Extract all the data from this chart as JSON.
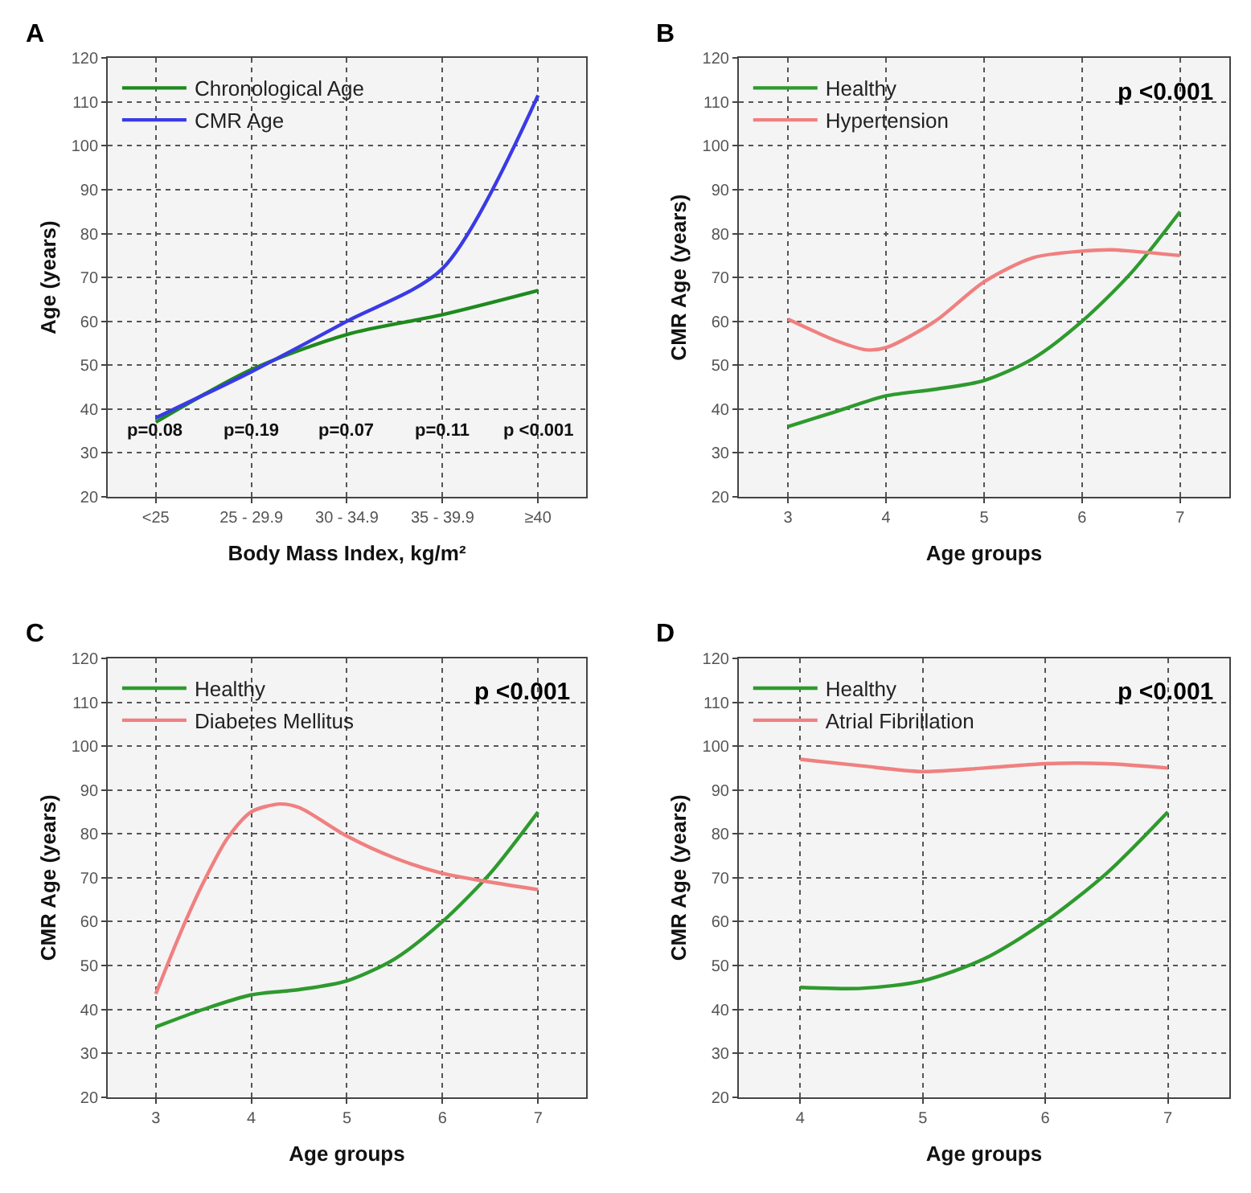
{
  "chart_data": [
    {
      "type": "line",
      "title": "A",
      "xlabel": "Body Mass Index, kg/m²",
      "ylabel": "Age (years)",
      "categories": [
        "<25",
        "25 - 29.9",
        "30 - 34.9",
        "35 - 39.9",
        "≥40"
      ],
      "series": [
        {
          "name": "Chronological Age",
          "color": "#1e8a1e",
          "values": [
            37,
            49,
            57,
            61.5,
            67
          ]
        },
        {
          "name": "CMR Age",
          "color": "#3a3ae6",
          "values": [
            38,
            48.5,
            60,
            72,
            111.5
          ]
        }
      ],
      "ylim": [
        20,
        120
      ],
      "yticks": [
        20,
        30,
        40,
        50,
        60,
        70,
        80,
        90,
        100,
        110,
        120
      ],
      "grid": true,
      "legend": "top left",
      "line_style": "solid",
      "annotations": [
        "p=0.08",
        "p=0.19",
        "p=0.07",
        "p=0.11",
        "p <0.001"
      ]
    },
    {
      "type": "line",
      "title": "B",
      "xlabel": "Age groups",
      "ylabel": "CMR Age (years)",
      "series": [
        {
          "name": "Healthy",
          "color": "#2e9a2e",
          "x": [
            3,
            3.5,
            4,
            4.5,
            5,
            5.5,
            6,
            6.5,
            7
          ],
          "values": [
            36,
            39.5,
            43,
            44.5,
            46.5,
            51.5,
            60,
            71,
            85
          ]
        },
        {
          "name": "Hypertension",
          "color": "#f08080",
          "x": [
            3,
            3.5,
            3.8,
            4,
            4.5,
            5,
            5.5,
            6,
            6.3,
            6.5,
            7
          ],
          "values": [
            60.5,
            55.5,
            53.5,
            54,
            60,
            69,
            74.5,
            76,
            76.3,
            76,
            75
          ]
        }
      ],
      "xlim": [
        2.5,
        7.5
      ],
      "xticks": [
        3,
        4,
        5,
        6,
        7
      ],
      "ylim": [
        20,
        120
      ],
      "yticks": [
        20,
        30,
        40,
        50,
        60,
        70,
        80,
        90,
        100,
        110,
        120
      ],
      "grid": true,
      "legend": "top left",
      "line_style": "solid",
      "annotations": [
        "p <0.001"
      ]
    },
    {
      "type": "line",
      "title": "C",
      "xlabel": "Age groups",
      "ylabel": "CMR Age (years)",
      "series": [
        {
          "name": "Healthy",
          "color": "#2e9a2e",
          "x": [
            3,
            3.5,
            4,
            4.5,
            5,
            5.5,
            6,
            6.5,
            7
          ],
          "values": [
            36,
            40,
            43.3,
            44.5,
            46.5,
            51.5,
            60,
            71,
            85
          ]
        },
        {
          "name": "Diabetes Mellitus",
          "color": "#f08080",
          "x": [
            3,
            3.25,
            3.5,
            3.75,
            4,
            4.3,
            4.5,
            5,
            5.5,
            6,
            6.5,
            7
          ],
          "values": [
            43.5,
            57,
            69,
            79,
            85,
            86.8,
            86,
            79.5,
            74.5,
            71,
            69,
            67.3
          ]
        }
      ],
      "xlim": [
        2.5,
        7.5
      ],
      "xticks": [
        3,
        4,
        5,
        6,
        7
      ],
      "ylim": [
        20,
        120
      ],
      "yticks": [
        20,
        30,
        40,
        50,
        60,
        70,
        80,
        90,
        100,
        110,
        120
      ],
      "grid": true,
      "legend": "top left",
      "line_style": "solid",
      "annotations": [
        "p <0.001"
      ]
    },
    {
      "type": "line",
      "title": "D",
      "xlabel": "Age groups",
      "ylabel": "CMR Age (years)",
      "series": [
        {
          "name": "Healthy",
          "color": "#2e9a2e",
          "x": [
            4,
            4.5,
            5,
            5.5,
            6,
            6.5,
            7
          ],
          "values": [
            45,
            44.8,
            46.5,
            51.5,
            60,
            71,
            85
          ]
        },
        {
          "name": "Atrial Fibrillation",
          "color": "#f08080",
          "x": [
            4,
            4.5,
            5,
            5.5,
            6,
            6.5,
            7
          ],
          "values": [
            97,
            95.5,
            94.2,
            95,
            96,
            96,
            95
          ]
        }
      ],
      "xlim": [
        3.5,
        7.5
      ],
      "xticks": [
        4,
        5,
        6,
        7
      ],
      "ylim": [
        20,
        120
      ],
      "yticks": [
        20,
        30,
        40,
        50,
        60,
        70,
        80,
        90,
        100,
        110,
        120
      ],
      "grid": true,
      "legend": "top left",
      "line_style": "solid",
      "annotations": [
        "p <0.001"
      ]
    }
  ]
}
